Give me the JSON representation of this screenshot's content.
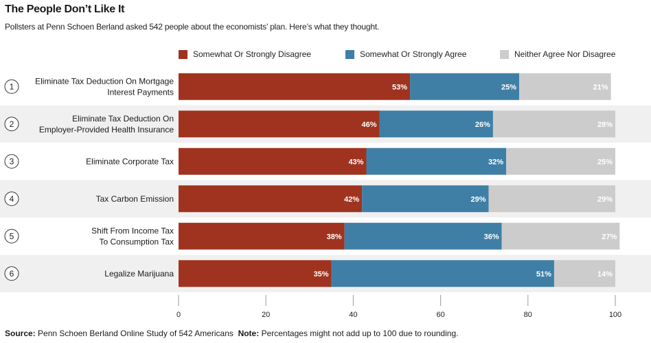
{
  "header": {
    "title": "The People Don’t Like It",
    "subtitle": "Pollsters at Penn Schoen Berland asked 542 people about the economists’ plan. Here’s what they thought."
  },
  "footer": {
    "source_label": "Source:",
    "source_text": "Penn Schoen Berland Online Study of 542 Americans",
    "note_label": "Note:",
    "note_text": "Percentages might not add up to 100 due to rounding."
  },
  "colors": {
    "disagree": "#a0331f",
    "agree": "#3f7fa6",
    "neither": "#cccccc",
    "band": "#f0f0f0"
  },
  "chart_data": {
    "type": "bar",
    "orientation": "horizontal",
    "stacked": true,
    "xlim": [
      0,
      100
    ],
    "xticks": [
      0,
      20,
      40,
      60,
      80,
      100
    ],
    "legend_position": "top",
    "series": [
      {
        "name": "Somewhat Or Strongly Disagree",
        "color": "#a0331f",
        "values": [
          53,
          46,
          43,
          42,
          38,
          35
        ]
      },
      {
        "name": "Somewhat Or Strongly Agree",
        "color": "#3f7fa6",
        "values": [
          25,
          26,
          32,
          29,
          36,
          51
        ]
      },
      {
        "name": "Neither Agree Nor Disagree",
        "color": "#cccccc",
        "values": [
          21,
          28,
          25,
          29,
          27,
          14
        ]
      }
    ],
    "categories": [
      {
        "number": "1",
        "lines": [
          "Eliminate Tax Deduction On Mortgage",
          "Interest Payments"
        ]
      },
      {
        "number": "2",
        "lines": [
          "Eliminate Tax Deduction On",
          "Employer-Provided Health Insurance"
        ]
      },
      {
        "number": "3",
        "lines": [
          "Eliminate Corporate Tax"
        ]
      },
      {
        "number": "4",
        "lines": [
          "Tax Carbon Emission"
        ]
      },
      {
        "number": "5",
        "lines": [
          "Shift From Income Tax",
          "To Consumption Tax"
        ]
      },
      {
        "number": "6",
        "lines": [
          "Legalize Marijuana"
        ]
      }
    ]
  }
}
